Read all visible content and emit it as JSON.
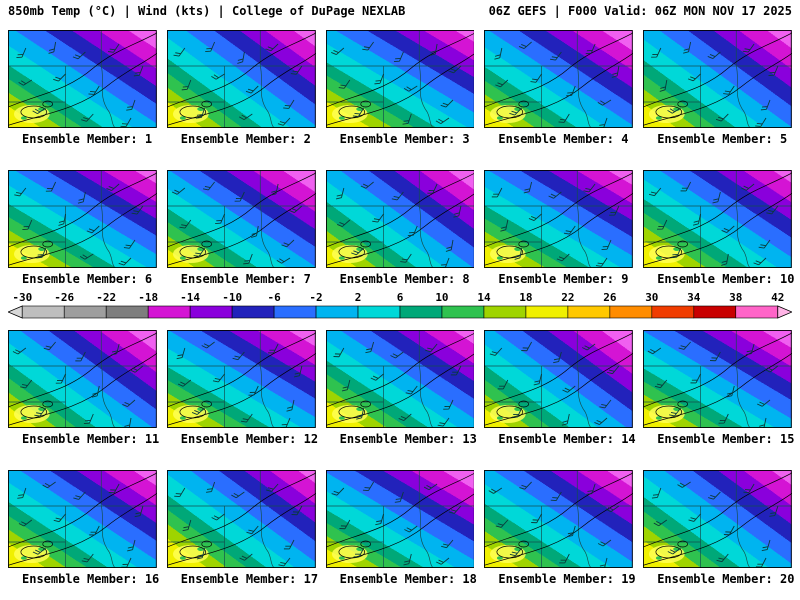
{
  "header": {
    "left": "850mb Temp (°C) | Wind (kts) | College of DuPage NEXLAB",
    "right": "06Z GEFS | F000 Valid: 06Z MON NOV 17 2025"
  },
  "ensemble": {
    "label_prefix": "Ensemble Member:",
    "members": [
      1,
      2,
      3,
      4,
      5,
      6,
      7,
      8,
      9,
      10,
      11,
      12,
      13,
      14,
      15,
      16,
      17,
      18,
      19,
      20
    ]
  },
  "colorbar": {
    "ticks": [
      "-30",
      "-26",
      "-22",
      "-18",
      "-14",
      "-10",
      "-6",
      "-2",
      "2",
      "6",
      "10",
      "14",
      "18",
      "22",
      "26",
      "30",
      "34",
      "38",
      "42"
    ],
    "segment_colors": [
      "#bebebe",
      "#9e9e9e",
      "#7e7e7e",
      "#d414d4",
      "#8a00dc",
      "#2222bb",
      "#2a6eff",
      "#00b4f0",
      "#00d8d8",
      "#00a878",
      "#2fc24f",
      "#9fd400",
      "#f0f000",
      "#ffc800",
      "#ff8c00",
      "#f03c00",
      "#c80000",
      "#ff64c8"
    ],
    "left_arrow_color": "#d8d8d8",
    "right_arrow_color": "#ffb4e6",
    "outline_color": "#000000"
  },
  "map": {
    "bands": [
      {
        "color": "#f0f000",
        "to": 0.12
      },
      {
        "color": "#9fd400",
        "to": 0.19
      },
      {
        "color": "#2fc24f",
        "to": 0.26
      },
      {
        "color": "#00a878",
        "to": 0.33
      },
      {
        "color": "#00d8d8",
        "to": 0.43
      },
      {
        "color": "#00b4f0",
        "to": 0.53
      },
      {
        "color": "#2a6eff",
        "to": 0.63
      },
      {
        "color": "#2222bb",
        "to": 0.72
      },
      {
        "color": "#8a00dc",
        "to": 0.81
      },
      {
        "color": "#d414d4",
        "to": 0.91
      },
      {
        "color": "#f060f0",
        "to": 1.0
      }
    ],
    "hot_spot_color": "#ffff55",
    "speck_color": "#2fc24f",
    "state_line_color": "#134f4f",
    "contour_color": "#000000",
    "barb_color": "#0a3a3a",
    "border_color": "#000000"
  }
}
